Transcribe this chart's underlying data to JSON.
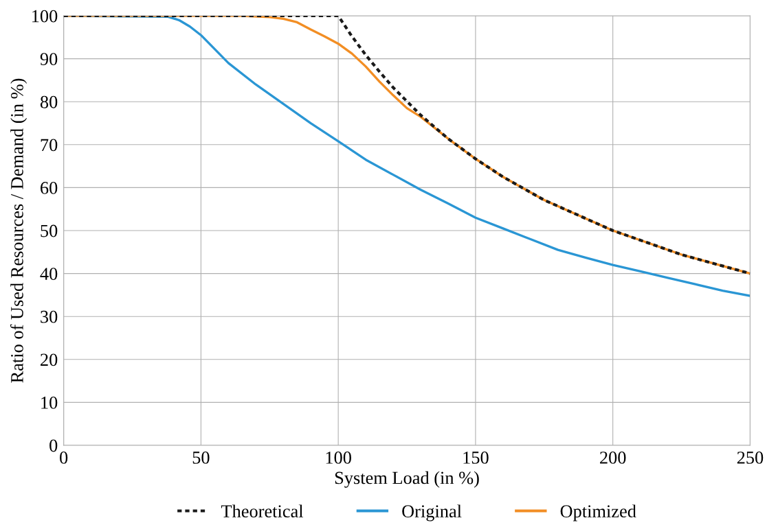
{
  "chart_data": {
    "type": "line",
    "xlabel": "System Load (in %)",
    "ylabel": "Ratio of Used Resources / Demand (in %)",
    "xlim": [
      0,
      250
    ],
    "ylim": [
      0,
      100
    ],
    "xticks": [
      0,
      50,
      100,
      150,
      200,
      250
    ],
    "yticks": [
      0,
      10,
      20,
      30,
      40,
      50,
      60,
      70,
      80,
      90,
      100
    ],
    "grid": true,
    "legend": "bottom",
    "marker": "none",
    "series": [
      {
        "name": "Theoretical",
        "color": "#1a1a1a",
        "line_style": "dotted",
        "x": [
          0,
          100,
          105,
          110,
          115,
          120,
          130,
          140,
          150,
          160,
          175,
          200,
          225,
          250
        ],
        "values": [
          100,
          100,
          95.2,
          90.9,
          87,
          83.3,
          76.9,
          71.4,
          66.7,
          62.5,
          57.1,
          50,
          44.4,
          40
        ]
      },
      {
        "name": "Original",
        "color": "#2a96d4",
        "line_style": "solid",
        "x": [
          0,
          38,
          42,
          46,
          50,
          60,
          70,
          80,
          90,
          100,
          110,
          120,
          130,
          140,
          150,
          160,
          170,
          180,
          190,
          200,
          210,
          220,
          230,
          240,
          250
        ],
        "values": [
          100,
          99.8,
          99,
          97.5,
          95.5,
          89,
          84,
          79.5,
          75,
          70.8,
          66.5,
          63,
          59.5,
          56.3,
          53,
          50.5,
          48,
          45.5,
          43.7,
          42,
          40.5,
          39,
          37.5,
          36,
          34.8
        ]
      },
      {
        "name": "Optimized",
        "color": "#f28e24",
        "line_style": "solid",
        "x": [
          0,
          65,
          75,
          80,
          85,
          90,
          95,
          100,
          105,
          110,
          115,
          120,
          125,
          130,
          140,
          150,
          160,
          175,
          200,
          225,
          250
        ],
        "values": [
          100,
          100,
          99.7,
          99.3,
          98.5,
          96.8,
          95.2,
          93.5,
          91.2,
          88.2,
          84.7,
          81.5,
          78.5,
          76.5,
          71.4,
          66.7,
          62.5,
          57.1,
          50,
          44.4,
          40
        ]
      }
    ]
  }
}
